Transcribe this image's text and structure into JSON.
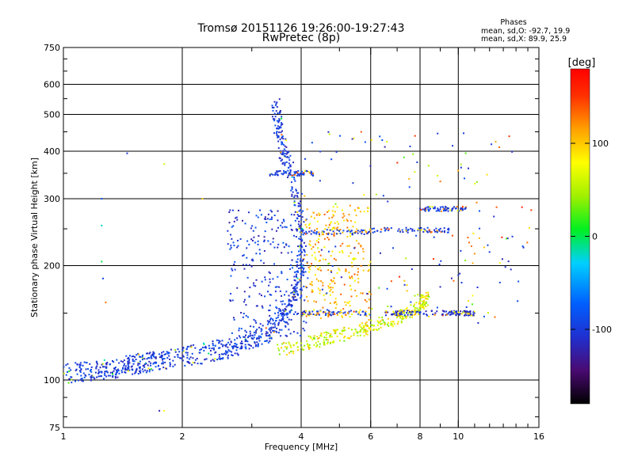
{
  "header": {
    "title": "Tromsø 20151126 19:26:00-19:27:43",
    "subtitle": "RwPretec (8p)"
  },
  "phases_box": {
    "title": "Phases",
    "line1": "mean, sd,O: -92.7, 19.9",
    "line2": "mean, sd,X: 89.9, 25.9"
  },
  "colorbar": {
    "label": "[deg]",
    "ticks": [
      "100",
      "0",
      "-100"
    ],
    "tick_values": [
      100,
      0,
      -100
    ],
    "range": [
      -180,
      180
    ],
    "colormap": "rainbow (black-purple-blue-cyan-green-yellow-orange-red)"
  },
  "chart_data": {
    "type": "scatter",
    "xlabel": "Frequency [MHz]",
    "ylabel": "Stationary phase Virtual Height [km]",
    "xscale": "log",
    "yscale": "log",
    "xlim": [
      1,
      16
    ],
    "ylim": [
      75,
      750
    ],
    "xticks": [
      1,
      2,
      4,
      6,
      8,
      10,
      16
    ],
    "xtick_labels": [
      "1",
      "2",
      "4",
      "6",
      "8",
      "10",
      "16"
    ],
    "yticks": [
      75,
      100,
      200,
      300,
      400,
      500,
      600,
      750
    ],
    "ytick_labels": [
      "75",
      "100",
      "200",
      "300",
      "400",
      "500",
      "600",
      "750"
    ],
    "grid": true,
    "series": [
      {
        "mode": "O",
        "phase_mean": -92.7,
        "phase_sd": 19.9,
        "trace": [
          {
            "x": 1.0,
            "y": 104
          },
          {
            "x": 1.1,
            "y": 105
          },
          {
            "x": 1.2,
            "y": 106
          },
          {
            "x": 1.3,
            "y": 107
          },
          {
            "x": 1.4,
            "y": 108
          },
          {
            "x": 1.5,
            "y": 110
          },
          {
            "x": 1.6,
            "y": 111
          },
          {
            "x": 1.7,
            "y": 112
          },
          {
            "x": 1.8,
            "y": 113
          },
          {
            "x": 2.0,
            "y": 115
          },
          {
            "x": 2.2,
            "y": 117
          },
          {
            "x": 2.4,
            "y": 119
          },
          {
            "x": 2.6,
            "y": 121
          },
          {
            "x": 2.8,
            "y": 124
          },
          {
            "x": 3.0,
            "y": 127
          },
          {
            "x": 3.2,
            "y": 131
          },
          {
            "x": 3.4,
            "y": 137
          },
          {
            "x": 3.6,
            "y": 145
          },
          {
            "x": 3.8,
            "y": 158
          },
          {
            "x": 3.9,
            "y": 175
          },
          {
            "x": 4.0,
            "y": 200
          },
          {
            "x": 4.0,
            "y": 240
          },
          {
            "x": 3.9,
            "y": 300
          },
          {
            "x": 3.7,
            "y": 370
          },
          {
            "x": 3.6,
            "y": 410
          },
          {
            "x": 3.5,
            "y": 470
          },
          {
            "x": 3.45,
            "y": 530
          }
        ],
        "phase_deg": -100
      },
      {
        "mode": "X",
        "phase_mean": 89.9,
        "phase_sd": 25.9,
        "trace": [
          {
            "x": 3.5,
            "y": 120
          },
          {
            "x": 4.0,
            "y": 124
          },
          {
            "x": 4.5,
            "y": 128
          },
          {
            "x": 5.0,
            "y": 131
          },
          {
            "x": 5.5,
            "y": 134
          },
          {
            "x": 6.0,
            "y": 138
          },
          {
            "x": 6.5,
            "y": 142
          },
          {
            "x": 7.0,
            "y": 146
          },
          {
            "x": 7.5,
            "y": 150
          },
          {
            "x": 8.0,
            "y": 156
          },
          {
            "x": 8.3,
            "y": 165
          }
        ],
        "phase_deg": 80
      }
    ],
    "echo_bands": [
      {
        "x_from": 3.3,
        "x_to": 4.3,
        "y": 350,
        "phase_deg": -100
      },
      {
        "x_from": 4.0,
        "x_to": 6.0,
        "y": 245,
        "phase_deg": -100
      },
      {
        "x_from": 6.0,
        "x_to": 9.5,
        "y": 248,
        "phase_deg": -100
      },
      {
        "x_from": 4.0,
        "x_to": 6.0,
        "y": 150,
        "phase_deg": -100
      },
      {
        "x_from": 6.5,
        "x_to": 9.5,
        "y": 150,
        "phase_deg": -110
      },
      {
        "x_from": 9.5,
        "x_to": 11.0,
        "y": 150,
        "phase_deg": -110
      },
      {
        "x_from": 8.0,
        "x_to": 10.5,
        "y": 282,
        "phase_deg": -100
      }
    ]
  }
}
